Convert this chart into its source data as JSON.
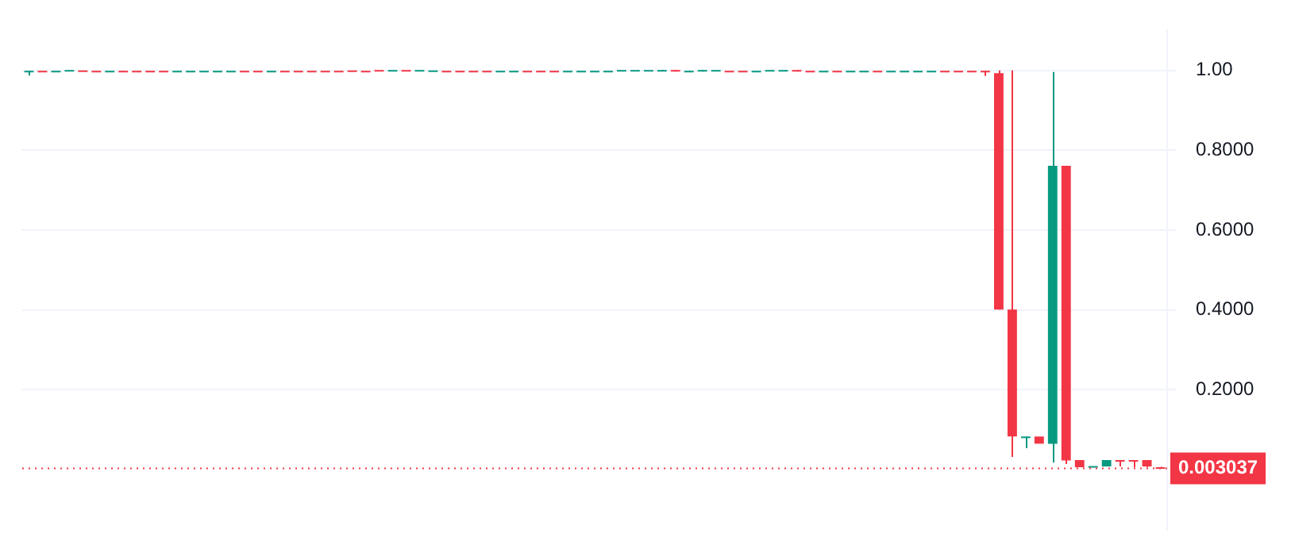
{
  "chart_data": {
    "type": "candlestick",
    "categories": [
      null,
      null,
      null,
      null,
      null,
      null,
      null,
      null,
      null,
      null,
      null,
      null,
      null,
      null,
      null,
      null,
      null,
      null,
      null,
      null,
      null,
      null,
      null,
      null,
      null,
      null,
      null,
      null,
      null,
      null,
      null,
      null,
      null,
      null,
      null,
      null,
      null,
      null,
      null,
      null,
      null,
      null,
      null,
      null,
      null,
      null,
      null,
      null,
      null,
      null,
      null,
      null,
      null,
      null,
      null,
      null,
      null,
      null,
      null,
      null,
      null,
      null,
      null,
      null,
      null,
      null,
      null,
      null,
      null,
      null,
      null,
      null,
      null,
      null,
      null,
      null,
      null,
      null,
      null,
      null,
      null,
      null,
      null,
      null,
      null
    ],
    "ohlc": [
      [
        0.997,
        0.999,
        0.987,
        0.999
      ],
      [
        0.999,
        0.999,
        0.997,
        0.997
      ],
      [
        0.997,
        0.999,
        0.997,
        0.999
      ],
      [
        0.997,
        1.001,
        0.997,
        1.001
      ],
      [
        1.0,
        1.0,
        0.997,
        0.997
      ],
      [
        0.999,
        0.999,
        0.997,
        0.997
      ],
      [
        0.997,
        0.999,
        0.997,
        0.999
      ],
      [
        0.999,
        0.999,
        0.997,
        0.997
      ],
      [
        0.999,
        0.999,
        0.997,
        0.997
      ],
      [
        0.999,
        0.999,
        0.997,
        0.997
      ],
      [
        0.999,
        0.999,
        0.997,
        0.997
      ],
      [
        0.997,
        0.999,
        0.997,
        0.999
      ],
      [
        0.997,
        0.999,
        0.997,
        0.999
      ],
      [
        0.997,
        0.999,
        0.997,
        0.999
      ],
      [
        0.997,
        0.999,
        0.997,
        0.999
      ],
      [
        0.999,
        0.999,
        0.997,
        0.997
      ],
      [
        0.999,
        0.999,
        0.997,
        0.997
      ],
      [
        0.997,
        0.999,
        0.997,
        0.999
      ],
      [
        0.999,
        0.999,
        0.997,
        0.997
      ],
      [
        0.999,
        0.999,
        0.997,
        0.997
      ],
      [
        0.999,
        0.999,
        0.997,
        0.997
      ],
      [
        0.999,
        0.999,
        0.997,
        0.997
      ],
      [
        0.999,
        0.999,
        0.997,
        0.997
      ],
      [
        0.999,
        0.999,
        0.997,
        0.997
      ],
      [
        1.0,
        1.0,
        0.997,
        0.997
      ],
      [
        0.999,
        0.999,
        0.997,
        0.997
      ],
      [
        0.997,
        1.001,
        0.997,
        1.001
      ],
      [
        1.001,
        1.001,
        0.997,
        0.997
      ],
      [
        0.997,
        1.001,
        0.997,
        1.001
      ],
      [
        0.997,
        1.001,
        0.997,
        1.001
      ],
      [
        1.0,
        1.0,
        0.997,
        0.997
      ],
      [
        0.999,
        0.999,
        0.997,
        0.997
      ],
      [
        0.999,
        0.999,
        0.997,
        0.997
      ],
      [
        0.999,
        0.999,
        0.997,
        0.997
      ],
      [
        0.997,
        0.999,
        0.997,
        0.999
      ],
      [
        0.997,
        0.999,
        0.997,
        0.999
      ],
      [
        0.999,
        0.999,
        0.997,
        0.997
      ],
      [
        0.999,
        0.999,
        0.997,
        0.997
      ],
      [
        0.999,
        0.999,
        0.997,
        0.997
      ],
      [
        0.997,
        0.999,
        0.997,
        0.999
      ],
      [
        0.997,
        0.999,
        0.997,
        0.999
      ],
      [
        0.997,
        0.999,
        0.997,
        0.999
      ],
      [
        0.997,
        0.999,
        0.997,
        0.999
      ],
      [
        0.997,
        0.999,
        0.997,
        0.999
      ],
      [
        0.997,
        1.001,
        0.997,
        1.001
      ],
      [
        0.999,
        1.001,
        0.999,
        1.001
      ],
      [
        0.999,
        1.001,
        0.999,
        1.001
      ],
      [
        1.0,
        1.001,
        0.999,
        1.001
      ],
      [
        1.001,
        1.001,
        0.997,
        0.999
      ],
      [
        0.999,
        0.999,
        0.997,
        0.999
      ],
      [
        0.999,
        1.001,
        0.997,
        1.001
      ],
      [
        0.999,
        1.001,
        0.999,
        1.001
      ],
      [
        0.999,
        0.999,
        0.997,
        0.997
      ],
      [
        0.999,
        0.999,
        0.997,
        0.997
      ],
      [
        0.997,
        0.999,
        0.997,
        0.999
      ],
      [
        0.997,
        1.001,
        0.997,
        1.001
      ],
      [
        0.997,
        1.001,
        0.997,
        1.001
      ],
      [
        1.001,
        1.001,
        0.997,
        0.999
      ],
      [
        0.999,
        0.999,
        0.997,
        0.997
      ],
      [
        0.997,
        0.999,
        0.997,
        0.999
      ],
      [
        0.999,
        0.999,
        0.997,
        0.997
      ],
      [
        0.997,
        0.999,
        0.997,
        0.999
      ],
      [
        0.997,
        0.999,
        0.997,
        0.999
      ],
      [
        0.999,
        0.999,
        0.997,
        0.997
      ],
      [
        0.997,
        0.999,
        0.997,
        0.999
      ],
      [
        0.997,
        0.999,
        0.997,
        0.999
      ],
      [
        0.997,
        0.999,
        0.997,
        0.999
      ],
      [
        0.997,
        0.999,
        0.997,
        0.999
      ],
      [
        0.999,
        0.999,
        0.997,
        0.997
      ],
      [
        0.999,
        0.999,
        0.997,
        0.997
      ],
      [
        0.999,
        0.999,
        0.997,
        0.997
      ],
      [
        0.999,
        0.999,
        0.986,
        0.997
      ],
      [
        0.993,
        1.0,
        0.401,
        0.401
      ],
      [
        0.401,
        1.0,
        0.032,
        0.083
      ],
      [
        0.082,
        0.083,
        0.054,
        0.083
      ],
      [
        0.083,
        0.083,
        0.065,
        0.065
      ],
      [
        0.065,
        0.996,
        0.018,
        0.761
      ],
      [
        0.761,
        0.761,
        0.014,
        0.023
      ],
      [
        0.024,
        0.024,
        0.006,
        0.006
      ],
      [
        0.005,
        0.009,
        0.005,
        0.009
      ],
      [
        0.008,
        0.024,
        0.008,
        0.024
      ],
      [
        0.024,
        0.024,
        0.008,
        0.022
      ],
      [
        0.024,
        0.024,
        0.006,
        0.022
      ],
      [
        0.024,
        0.024,
        0.006,
        0.008
      ],
      [
        0.006,
        0.007,
        0.003,
        0.003037
      ]
    ],
    "colors": [
      "#089981",
      "#f23645",
      "#089981",
      "#089981",
      "#f23645",
      "#f23645",
      "#089981",
      "#f23645",
      "#f23645",
      "#f23645",
      "#f23645",
      "#089981",
      "#089981",
      "#089981",
      "#089981",
      "#089981",
      "#f23645",
      "#f23645",
      "#089981",
      "#f23645",
      "#f23645",
      "#f23645",
      "#f23645",
      "#f23645",
      "#f23645",
      "#f23645",
      "#f23645",
      "#089981",
      "#f23645",
      "#089981",
      "#089981",
      "#f23645",
      "#f23645",
      "#f23645",
      "#f23645",
      "#089981",
      "#089981",
      "#f23645",
      "#f23645",
      "#f23645",
      "#089981",
      "#089981",
      "#089981",
      "#089981",
      "#089981",
      "#089981",
      "#089981",
      "#089981",
      "#f23645",
      "#089981",
      "#089981",
      "#089981",
      "#f23645",
      "#f23645",
      "#089981",
      "#089981",
      "#089981",
      "#f23645",
      "#f23645",
      "#089981",
      "#f23645",
      "#089981",
      "#089981",
      "#f23645",
      "#089981",
      "#089981",
      "#089981",
      "#089981",
      "#f23645",
      "#f23645",
      "#f23645",
      "#f23645",
      "#f23645",
      "#f23645",
      "#089981",
      "#f23645",
      "#089981",
      "#f23645",
      "#f23645",
      "#089981",
      "#089981",
      "#f23645",
      "#f23645",
      "#f23645",
      "#f23645"
    ],
    "ylim": [
      -0.15,
      1.1
    ],
    "yticks": [
      {
        "value": 1,
        "label": "1.00"
      },
      {
        "value": 0.8,
        "label": "0.8000"
      },
      {
        "value": 0.6,
        "label": "0.6000"
      },
      {
        "value": 0.4,
        "label": "0.4000"
      },
      {
        "value": 0.2,
        "label": "0.2000"
      }
    ],
    "grid": "y",
    "ref_lines": [
      {
        "axis": "y",
        "value": 0.003037,
        "label": "0.003037",
        "color": "#f23645",
        "line_style": "dotted"
      }
    ]
  }
}
